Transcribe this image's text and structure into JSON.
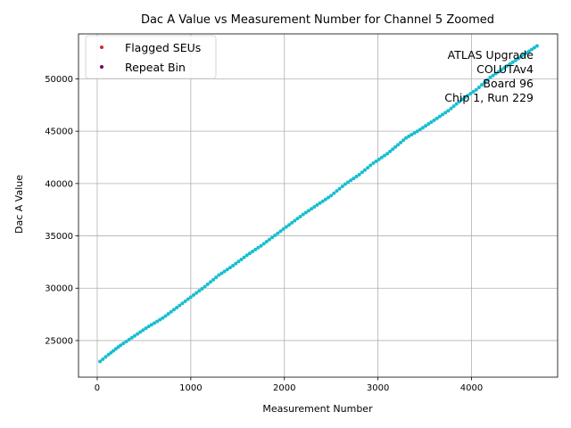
{
  "chart_data": {
    "type": "scatter",
    "title": "Dac A Value vs Measurement Number for Channel 5 Zoomed",
    "xlabel": "Measurement Number",
    "ylabel": "Dac A Value",
    "xlim": [
      -200,
      4920
    ],
    "ylim": [
      21500,
      54300
    ],
    "xticks": [
      0,
      1000,
      2000,
      3000,
      4000
    ],
    "yticks": [
      25000,
      30000,
      35000,
      40000,
      45000,
      50000
    ],
    "grid": true,
    "legend_position": "top-left",
    "series": [
      {
        "name": "Flagged SEUs",
        "color": "#d62728",
        "x": [],
        "y": []
      },
      {
        "name": "Repeat Bin",
        "color": "#6a0a5a",
        "x": [],
        "y": []
      },
      {
        "color": "#17becf",
        "x": [
          30,
          120,
          250,
          400,
          550,
          700,
          850,
          1000,
          1150,
          1300,
          1450,
          1600,
          1750,
          1900,
          2050,
          2200,
          2350,
          2500,
          2650,
          2800,
          2950,
          3100,
          3300,
          3450,
          3600,
          3750,
          3900,
          4050,
          4200,
          4350,
          4500,
          4700
        ],
        "y": [
          23000,
          23650,
          24550,
          25450,
          26350,
          27150,
          28150,
          29150,
          30150,
          31250,
          32150,
          33150,
          34050,
          35050,
          36050,
          37050,
          37950,
          38850,
          39950,
          40850,
          41950,
          42850,
          44350,
          45150,
          46050,
          46950,
          48050,
          48950,
          50150,
          51050,
          51950,
          53150
        ]
      }
    ],
    "annotation_lines": [
      "ATLAS Upgrade",
      "COLUTAv4",
      "Board 96",
      "Chip 1, Run 229"
    ]
  }
}
